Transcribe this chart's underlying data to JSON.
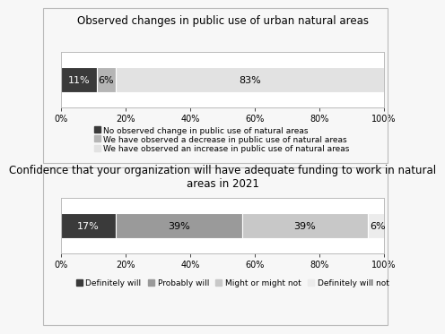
{
  "chart1": {
    "title": "Observed changes in public use of urban natural areas",
    "segments": [
      11,
      6,
      83
    ],
    "colors": [
      "#3a3a3a",
      "#b5b5b5",
      "#e2e2e2"
    ],
    "labels": [
      "11%",
      "6%",
      "83%"
    ],
    "legend": [
      "No observed change in public use of natural areas",
      "We have observed a decrease in public use of natural areas",
      "We have observed an increase in public use of natural areas"
    ]
  },
  "chart2": {
    "title": "Confidence that your organization will have adequate funding to work in natural\nareas in 2021",
    "segments": [
      17,
      39,
      39,
      6
    ],
    "colors": [
      "#3a3a3a",
      "#9a9a9a",
      "#c8c8c8",
      "#ececec"
    ],
    "labels": [
      "17%",
      "39%",
      "39%",
      "6%"
    ],
    "legend": [
      "Definitely will",
      "Probably will",
      "Might or might not",
      "Definitely will not"
    ]
  },
  "xticks": [
    0,
    20,
    40,
    60,
    80,
    100
  ],
  "xticklabels": [
    "0%",
    "20%",
    "40%",
    "60%",
    "80%",
    "100%"
  ],
  "background_color": "#f7f7f7",
  "panel_bg": "#ffffff",
  "border_color": "#bbbbbb",
  "title_fontsize": 8.5,
  "legend_fontsize": 6.5,
  "tick_fontsize": 7,
  "label_fontsize": 8
}
